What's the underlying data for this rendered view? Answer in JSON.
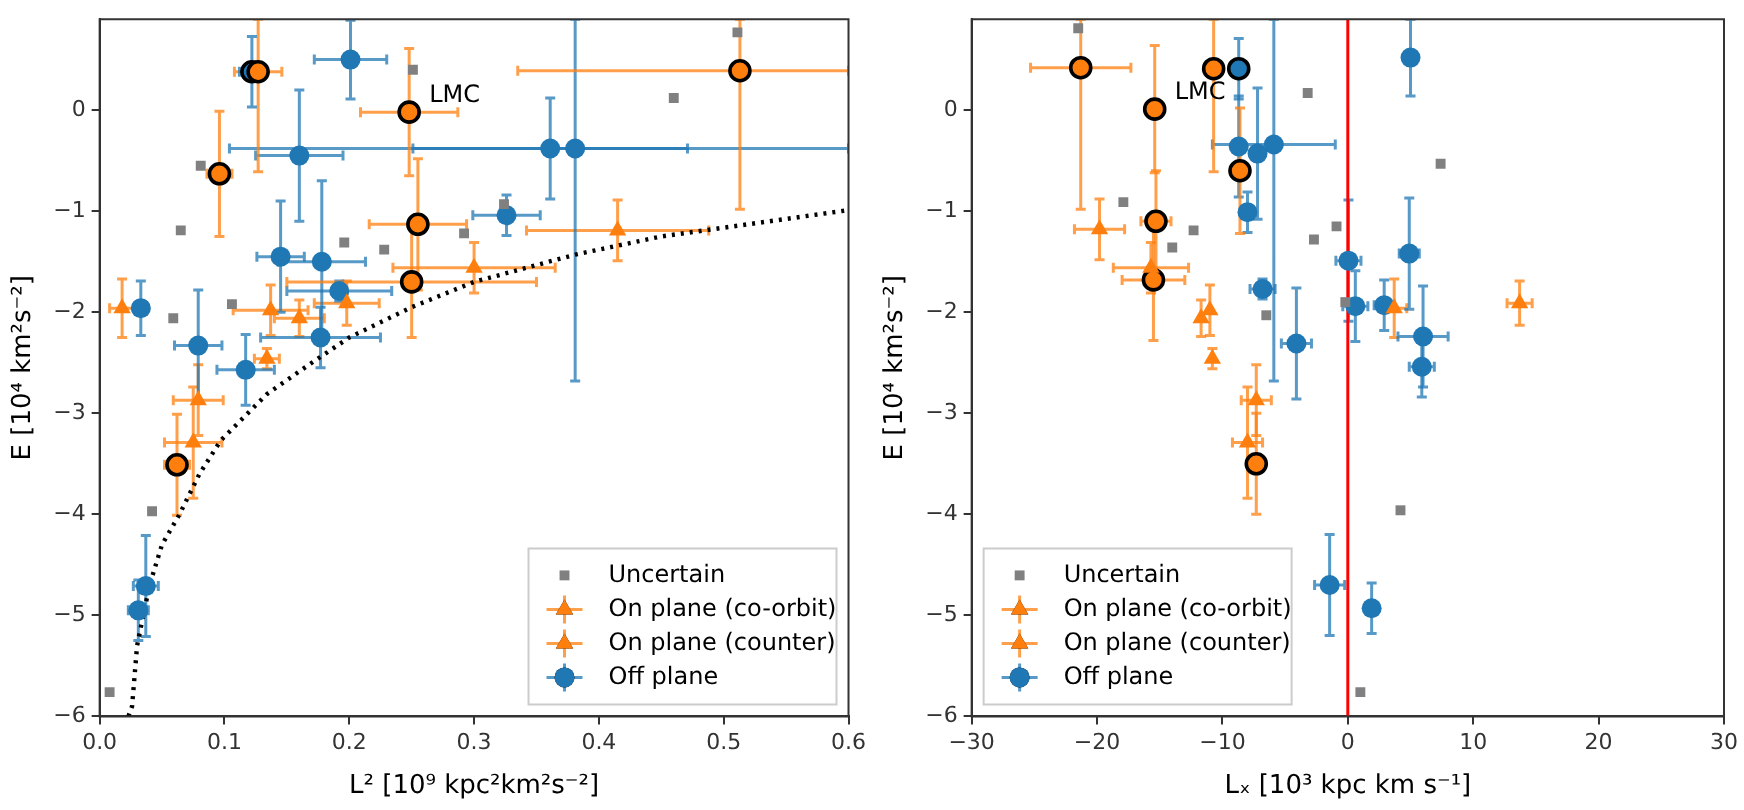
{
  "chart_data": [
    {
      "type": "scatter",
      "xlabel": "L² [10⁹ kpc²km²s⁻²]",
      "ylabel": "E [10⁴ km²s⁻²]",
      "xlim": [
        0,
        0.6
      ],
      "ylim": [
        -6,
        0.9
      ],
      "xticks": [
        {
          "value": 0,
          "label": "0.0"
        },
        {
          "value": 0.1,
          "label": "0.1"
        },
        {
          "value": 0.2,
          "label": "0.2"
        },
        {
          "value": 0.3,
          "label": "0.3"
        },
        {
          "value": 0.4,
          "label": "0.4"
        },
        {
          "value": 0.5,
          "label": "0.5"
        },
        {
          "value": 0.6,
          "label": "0.6"
        }
      ],
      "yticks": [
        {
          "value": -6,
          "label": "−6"
        },
        {
          "value": -5,
          "label": "−5"
        },
        {
          "value": -4,
          "label": "−4"
        },
        {
          "value": -3,
          "label": "−3"
        },
        {
          "value": -2,
          "label": "−2"
        },
        {
          "value": -1,
          "label": "−1"
        },
        0
      ],
      "legend": "bottom right",
      "annotations": [
        {
          "text": "LMC",
          "x": 0.248,
          "y": -0.02
        }
      ],
      "series": [
        {
          "type": "line",
          "color": "#000000",
          "line_style": "dotted",
          "marker": "none",
          "x": [
            0.023,
            0.026,
            0.03,
            0.04,
            0.05,
            0.064,
            0.08,
            0.097,
            0.134,
            0.17,
            0.2,
            0.25,
            0.3,
            0.381,
            0.45,
            0.6
          ],
          "values": [
            -6.0,
            -5.9,
            -5.3,
            -4.7,
            -4.3,
            -4.0,
            -3.6,
            -3.27,
            -2.81,
            -2.5,
            -2.25,
            -1.95,
            -1.7,
            -1.43,
            -1.25,
            -0.99
          ]
        },
        {
          "name": "Uncertain",
          "color": "#808080",
          "marker": "square",
          "x": [
            0.251,
            0.081,
            0.065,
            0.196,
            0.228,
            0.292,
            0.106,
            0.059,
            0.511,
            0.46,
            0.324,
            0.042,
            0.008
          ],
          "values": [
            0.4,
            -0.55,
            -1.19,
            -1.31,
            -1.38,
            -1.22,
            -1.92,
            -2.06,
            0.77,
            0.12,
            -0.93,
            -3.97,
            -5.76
          ]
        },
        {
          "name": "On plane (co-orbit)",
          "color": "#ff7f0e",
          "marker": "triangle",
          "x": [
            0.415,
            0.3,
            0.137,
            0.134,
            0.079,
            0.075
          ],
          "values": [
            -1.19,
            -1.56,
            -1.98,
            -2.46,
            -2.87,
            -3.29
          ],
          "errors": [
            0.3,
            0.25,
            0.25,
            0.1,
            0.35,
            0.55
          ],
          "xerrors": [
            0.073,
            0.065,
            0.03,
            0.01,
            0.02,
            0.023
          ]
        },
        {
          "name": "On plane (counter)",
          "color": "#ff7f0e",
          "marker": "triangle",
          "x": [
            0.16,
            0.198,
            0.018
          ],
          "values": [
            -2.06,
            -1.91,
            -1.96
          ],
          "errors": [
            0.18,
            0.22,
            0.29
          ],
          "xerrors": [
            0.02,
            0.026,
            0.01
          ]
        },
        {
          "name": "Off plane",
          "color": "#1f77b4",
          "marker": "circle",
          "x": [
            0.201,
            0.16,
            0.145,
            0.178,
            0.192,
            0.033,
            0.079,
            0.177,
            0.117,
            0.361,
            0.381,
            0.326,
            0.037,
            0.031
          ],
          "values": [
            0.5,
            -0.45,
            -1.45,
            -1.5,
            -1.79,
            -1.96,
            -2.33,
            -2.25,
            -2.57,
            -0.38,
            -0.38,
            -1.04,
            -4.71,
            -4.95
          ],
          "errors": [
            0.39,
            0.65,
            0.55,
            0.8,
            0.1,
            0.27,
            0.55,
            0.3,
            0.35,
            0.5,
            [
              -2.68,
              0.9
            ],
            0.2,
            0.5,
            0.3
          ],
          "xerrors": [
            0.029,
            0.035,
            0.019,
            0.035,
            0.042,
            null,
            0.019,
            0.048,
            0.023,
            0.11,
            [
              0.104,
              0.6
            ],
            0.027,
            0.01,
            0.008
          ]
        },
        {
          "color": "#ff7f0e",
          "marker": "circle",
          "x": [
            0.127,
            0.248,
            0.096,
            0.255,
            0.25,
            0.513,
            0.062
          ],
          "values": [
            0.38,
            -0.02,
            -0.63,
            -1.13,
            -1.7,
            0.39,
            -3.51
          ],
          "errors": [
            [
              -0.61,
              0.9
            ],
            0.63,
            0.62,
            0.65,
            0.55,
            [
              -0.98,
              0.9
            ],
            0.5
          ],
          "xerrors": [
            0.019,
            0.039,
            0.01,
            0.039,
            0.1,
            [
              0.335,
              0.6
            ],
            0.01
          ]
        },
        {
          "color": "#1f77b4",
          "marker": "circle",
          "x": [
            0.122
          ],
          "values": [
            0.38
          ],
          "errors": [
            0.35
          ],
          "xerrors": [
            0.01
          ]
        }
      ]
    },
    {
      "type": "scatter",
      "xlabel": "Lₓ [10³ kpc km s⁻¹]",
      "ylabel": "E [10⁴ km²s⁻²]",
      "xlim": [
        -30,
        30
      ],
      "ylim": [
        -6,
        0.9
      ],
      "xticks": [
        {
          "value": -30,
          "label": "−30"
        },
        {
          "value": -20,
          "label": "−20"
        },
        {
          "value": -10,
          "label": "−10"
        },
        0,
        10,
        20,
        30
      ],
      "yticks": [
        {
          "value": -6,
          "label": "−6"
        },
        {
          "value": -5,
          "label": "−5"
        },
        {
          "value": -4,
          "label": "−4"
        },
        {
          "value": -3,
          "label": "−3"
        },
        {
          "value": -2,
          "label": "−2"
        },
        {
          "value": -1,
          "label": "−1"
        },
        0
      ],
      "legend": "bottom left",
      "ref_lines": [
        {
          "axis": "x",
          "value": 0,
          "color": "#ff0000"
        }
      ],
      "annotations": [
        {
          "text": "LMC",
          "x": -15.4,
          "y": 0.01
        }
      ],
      "series": [
        {
          "name": "Uncertain",
          "color": "#808080",
          "marker": "square",
          "x": [
            -21.5,
            -3.2,
            -17.9,
            -12.3,
            -14.0,
            -2.7,
            -0.9,
            -0.2,
            -6.5,
            4.2,
            1.0,
            7.4
          ],
          "values": [
            0.81,
            0.17,
            -0.91,
            -1.19,
            -1.36,
            -1.28,
            -1.15,
            -1.9,
            -2.03,
            -3.96,
            -5.76,
            -0.53
          ]
        },
        {
          "name": "On plane (co-orbit)",
          "color": "#ff7f0e",
          "marker": "triangle",
          "x": [
            -19.8,
            -15.7,
            -11.0,
            -10.8,
            -7.3,
            -8.0
          ],
          "values": [
            -1.18,
            -1.56,
            -1.98,
            -2.46,
            -2.87,
            -3.29
          ],
          "errors": [
            0.3,
            0.25,
            0.25,
            0.1,
            0.35,
            0.55
          ],
          "xerrors": [
            2.0,
            3.0,
            null,
            null,
            1.2,
            1.2
          ]
        },
        {
          "name": "On plane (counter)",
          "color": "#ff7f0e",
          "marker": "triangle",
          "x": [
            -11.7,
            13.7,
            3.7
          ],
          "values": [
            -2.06,
            -1.91,
            -1.96
          ],
          "errors": [
            0.18,
            0.22,
            0.29
          ],
          "xerrors": [
            null,
            1.0,
            1.0
          ]
        },
        {
          "name": "Off plane",
          "color": "#1f77b4",
          "marker": "circle",
          "x": [
            5.0,
            -7.2,
            4.9,
            0.05,
            -6.8,
            0.6,
            -4.1,
            6.0,
            5.9,
            -8.7,
            -5.9,
            -8.0,
            -1.45,
            1.9,
            2.9
          ],
          "values": [
            0.52,
            -0.43,
            -1.42,
            -1.49,
            -1.77,
            -1.94,
            -2.31,
            -2.24,
            -2.54,
            -0.36,
            -0.34,
            -1.01,
            -4.7,
            -4.93,
            -1.93
          ],
          "errors": [
            0.38,
            0.65,
            0.55,
            0.6,
            0.1,
            0.35,
            0.55,
            0.5,
            0.3,
            0.5,
            [
              -2.68,
              0.9
            ],
            0.2,
            0.5,
            0.25,
            0.25
          ],
          "xerrors": [
            null,
            null,
            0.8,
            1.0,
            1.0,
            1.0,
            1.2,
            2.0,
            1.0,
            null,
            [
              -10.8,
              -1.0
            ],
            null,
            1.2,
            null,
            0.8
          ]
        },
        {
          "color": "#ff7f0e",
          "marker": "circle",
          "x": [
            -10.7,
            -15.4,
            -8.6,
            -15.3,
            -15.5,
            -21.3,
            -7.3
          ],
          "values": [
            0.41,
            0.01,
            -0.6,
            -1.1,
            -1.68,
            0.42,
            -3.5
          ],
          "errors": [
            [
              -0.61,
              0.9
            ],
            0.63,
            0.62,
            0.5,
            0.6,
            [
              -0.98,
              0.9
            ],
            0.5
          ],
          "xerrors": [
            null,
            null,
            null,
            1.2,
            2.5,
            4.0,
            null
          ]
        },
        {
          "color": "#1f77b4",
          "marker": "circle",
          "x": [
            -8.7
          ],
          "values": [
            0.41
          ],
          "errors": [
            0.3
          ]
        }
      ]
    }
  ]
}
